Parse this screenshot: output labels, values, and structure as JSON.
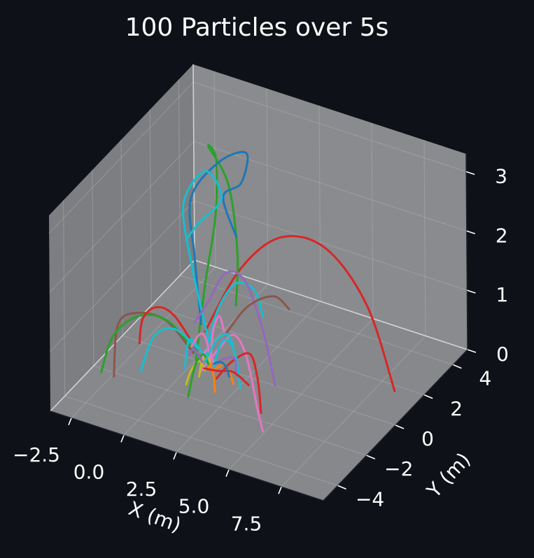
{
  "colors": {
    "background": "#0e1117",
    "pane_back": "#8a8b8e",
    "pane_side": "#7d7e81",
    "pane_floor": "#87888b",
    "text": "#ffffff",
    "grid": "#b4b5b8"
  },
  "chart_data": {
    "type": "line",
    "projection": "3d",
    "title": "100 Particles over 5s",
    "xlabel": "X (m)",
    "ylabel": "Y (m)",
    "zlabel": "",
    "xlim": [
      -3.5,
      9.5
    ],
    "ylim": [
      -5,
      5
    ],
    "zlim": [
      0,
      3.3
    ],
    "xticks": [
      "−2.5",
      "0.0",
      "2.5",
      "5.0",
      "7.5"
    ],
    "yticks": [
      "−4",
      "−2",
      "0",
      "2",
      "4"
    ],
    "zticks": [
      "0",
      "1",
      "2",
      "3"
    ],
    "grid": true,
    "series": [
      {
        "color": "#d62728",
        "points": [
          [
            0.8,
            -0.5,
            0.7
          ],
          [
            2.2,
            -0.1,
            1.8
          ],
          [
            3.8,
            0.4,
            2.4
          ],
          [
            5.6,
            0.9,
            2.3
          ],
          [
            7.2,
            1.4,
            1.4
          ],
          [
            8.3,
            1.7,
            0
          ]
        ]
      },
      {
        "color": "#2ca02c",
        "points": [
          [
            0.0,
            0.0,
            0.0
          ],
          [
            0.3,
            0.2,
            1.2
          ],
          [
            0.7,
            0.4,
            2.4
          ],
          [
            0.4,
            0.9,
            3.2
          ],
          [
            -0.1,
            1.1,
            3.3
          ],
          [
            0.5,
            1.6,
            2.6
          ],
          [
            0.7,
            1.9,
            1.4
          ],
          [
            0.4,
            2.2,
            0.4
          ]
        ]
      },
      {
        "color": "#1f77b4",
        "points": [
          [
            0.4,
            -0.2,
            0.7
          ],
          [
            -0.1,
            0.1,
            1.7
          ],
          [
            -0.6,
            0.6,
            2.5
          ],
          [
            0.2,
            1.4,
            3.0
          ],
          [
            1.3,
            1.7,
            3.2
          ],
          [
            0.9,
            1.9,
            2.6
          ],
          [
            -0.1,
            2.1,
            2.2
          ],
          [
            0.3,
            2.4,
            1.5
          ]
        ]
      },
      {
        "color": "#17becf",
        "points": [
          [
            0.4,
            0.3,
            0.3
          ],
          [
            -0.6,
            0.6,
            1.4
          ],
          [
            -1.3,
            1.1,
            2.2
          ],
          [
            -0.6,
            1.6,
            2.7
          ],
          [
            0.1,
            1.7,
            2.3
          ],
          [
            -0.7,
            1.3,
            1.9
          ],
          [
            -1.2,
            1.1,
            1.6
          ]
        ]
      },
      {
        "color": "#17becf",
        "points": [
          [
            0.8,
            -0.5,
            0.2
          ],
          [
            1.2,
            -0.3,
            1.0
          ],
          [
            1.9,
            0.0,
            1.5
          ],
          [
            2.6,
            0.3,
            1.4
          ],
          [
            2.8,
            0.6,
            0.9
          ]
        ]
      },
      {
        "color": "#9467bd",
        "points": [
          [
            -0.3,
            0.4,
            0.5
          ],
          [
            0.7,
            -0.1,
            1.1
          ],
          [
            1.8,
            -0.5,
            1.8
          ],
          [
            3.0,
            -0.9,
            1.9
          ],
          [
            4.0,
            -1.1,
            1.2
          ],
          [
            4.6,
            -1.2,
            0.4
          ]
        ]
      },
      {
        "color": "#8c564b",
        "points": [
          [
            1.0,
            0.7,
            0.4
          ],
          [
            1.9,
            0.9,
            0.9
          ],
          [
            2.9,
            1.2,
            1.1
          ],
          [
            3.5,
            1.4,
            0.9
          ]
        ]
      },
      {
        "color": "#e377c2",
        "points": [
          [
            1.0,
            -1.2,
            0.2
          ],
          [
            2.1,
            -1.4,
            0.8
          ],
          [
            3.0,
            -1.7,
            1.2
          ],
          [
            3.8,
            -2.0,
            1.0
          ],
          [
            4.5,
            -2.3,
            0.3
          ],
          [
            4.9,
            -2.5,
            0
          ]
        ]
      },
      {
        "color": "#d62728",
        "points": [
          [
            1.6,
            -0.9,
            0.1
          ],
          [
            2.4,
            -1.0,
            0.5
          ],
          [
            3.4,
            -1.2,
            0.8
          ],
          [
            3.9,
            -1.4,
            0.5
          ],
          [
            4.2,
            -1.6,
            0
          ]
        ]
      },
      {
        "color": "#8c564b",
        "points": [
          [
            0.3,
            -0.6,
            0.3
          ],
          [
            -0.8,
            -0.9,
            0.8
          ],
          [
            -1.9,
            -1.3,
            0.9
          ],
          [
            -2.6,
            -1.6,
            0.7
          ],
          [
            -2.4,
            -2.2,
            0
          ]
        ]
      },
      {
        "color": "#2ca02c",
        "points": [
          [
            0.3,
            -0.5,
            0.3
          ],
          [
            -0.7,
            -0.9,
            0.8
          ],
          [
            -1.7,
            -1.4,
            0.9
          ],
          [
            -2.6,
            -1.9,
            0.6
          ],
          [
            -3.0,
            -2.2,
            0.0
          ]
        ]
      },
      {
        "color": "#d62728",
        "points": [
          [
            0.2,
            -0.3,
            0.3
          ],
          [
            -0.7,
            -0.5,
            0.8
          ],
          [
            -1.4,
            -0.7,
            0.9
          ],
          [
            -1.9,
            -0.9,
            0.7
          ],
          [
            -2.0,
            -1.0,
            0.3
          ]
        ]
      },
      {
        "color": "#17becf",
        "points": [
          [
            0.3,
            -0.3,
            0.3
          ],
          [
            -0.6,
            -0.6,
            0.6
          ],
          [
            -1.3,
            -1.0,
            0.5
          ],
          [
            -1.6,
            -1.5,
            0.0
          ]
        ]
      },
      {
        "color": "#17becf",
        "points": [
          [
            0.9,
            -0.4,
            0.1
          ],
          [
            0.6,
            -0.6,
            0.4
          ],
          [
            0.3,
            -0.9,
            0.6
          ],
          [
            0.3,
            -1.2,
            0.2
          ]
        ]
      },
      {
        "color": "#17becf",
        "points": [
          [
            1.1,
            -0.4,
            0.1
          ],
          [
            1.6,
            -0.6,
            0.6
          ],
          [
            2.2,
            -0.9,
            0.8
          ],
          [
            2.7,
            -1.1,
            0.6
          ],
          [
            3.0,
            -1.3,
            0.2
          ]
        ]
      },
      {
        "color": "#9467bd",
        "points": [
          [
            1.0,
            -0.2,
            0.1
          ],
          [
            1.6,
            -0.4,
            0.3
          ],
          [
            2.2,
            -0.5,
            0.4
          ],
          [
            2.4,
            -0.7,
            0.2
          ]
        ]
      },
      {
        "color": "#e377c2",
        "points": [
          [
            0.9,
            -0.3,
            0.1
          ],
          [
            0.6,
            -0.1,
            0.4
          ],
          [
            0.3,
            -0.1,
            0.5
          ],
          [
            0.0,
            -0.3,
            0.3
          ]
        ]
      },
      {
        "color": "#e377c2",
        "points": [
          [
            0.9,
            -0.3,
            0.1
          ],
          [
            1.1,
            -0.4,
            0.7
          ],
          [
            1.4,
            -0.4,
            1.0
          ],
          [
            1.7,
            -0.5,
            0.8
          ]
        ]
      },
      {
        "color": "#e377c2",
        "points": [
          [
            0.6,
            -0.5,
            0.1
          ],
          [
            0.9,
            -0.7,
            0.4
          ],
          [
            1.2,
            -0.8,
            0.5
          ],
          [
            1.4,
            -0.8,
            0.3
          ]
        ]
      },
      {
        "color": "#bcbd22",
        "points": [
          [
            0.7,
            -0.8,
            0.0
          ],
          [
            0.7,
            -0.6,
            0.2
          ],
          [
            0.9,
            -0.5,
            0.3
          ],
          [
            1.0,
            -0.5,
            0.2
          ]
        ]
      },
      {
        "color": "#bcbd22",
        "points": [
          [
            0.9,
            -0.7,
            0.1
          ],
          [
            0.8,
            -0.9,
            0.3
          ],
          [
            0.6,
            -1.2,
            0.2
          ],
          [
            0.5,
            -1.4,
            0.0
          ]
        ]
      },
      {
        "color": "#ff7f0e",
        "points": [
          [
            1.0,
            -0.6,
            0.1
          ],
          [
            1.3,
            -0.9,
            0.3
          ],
          [
            1.6,
            -1.1,
            0.2
          ],
          [
            1.8,
            -1.3,
            0.0
          ]
        ]
      },
      {
        "color": "#ff7f0e",
        "points": [
          [
            1.2,
            -0.6,
            0.1
          ],
          [
            1.8,
            -0.7,
            0.3
          ],
          [
            2.2,
            -0.8,
            0.2
          ],
          [
            2.4,
            -0.9,
            0.1
          ]
        ]
      },
      {
        "color": "#d62728",
        "points": [
          [
            0.8,
            -0.6,
            0.1
          ],
          [
            1.6,
            -0.8,
            0.2
          ],
          [
            2.4,
            -0.9,
            0.3
          ],
          [
            3.2,
            -1.0,
            0.2
          ]
        ]
      },
      {
        "color": "#2ca02c",
        "points": [
          [
            0.8,
            -0.3,
            0.1
          ],
          [
            0.9,
            -0.8,
            0.4
          ],
          [
            1.0,
            -1.5,
            0.4
          ],
          [
            1.0,
            -2.0,
            0.0
          ]
        ]
      },
      {
        "color": "#1f77b4",
        "points": [
          [
            1.0,
            -0.2,
            0.1
          ],
          [
            1.4,
            -0.3,
            0.2
          ],
          [
            1.8,
            -0.5,
            0.2
          ],
          [
            2.0,
            -0.6,
            0.1
          ]
        ]
      },
      {
        "color": "#9467bd",
        "points": [
          [
            0.5,
            -0.3,
            0.1
          ],
          [
            0.2,
            -0.4,
            0.3
          ],
          [
            0.0,
            -0.5,
            0.2
          ]
        ]
      },
      {
        "color": "#17becf",
        "points": [
          [
            0.6,
            -0.2,
            0.1
          ],
          [
            0.9,
            0.1,
            0.4
          ],
          [
            1.3,
            0.3,
            0.5
          ],
          [
            1.5,
            0.4,
            0.3
          ]
        ]
      }
    ]
  }
}
